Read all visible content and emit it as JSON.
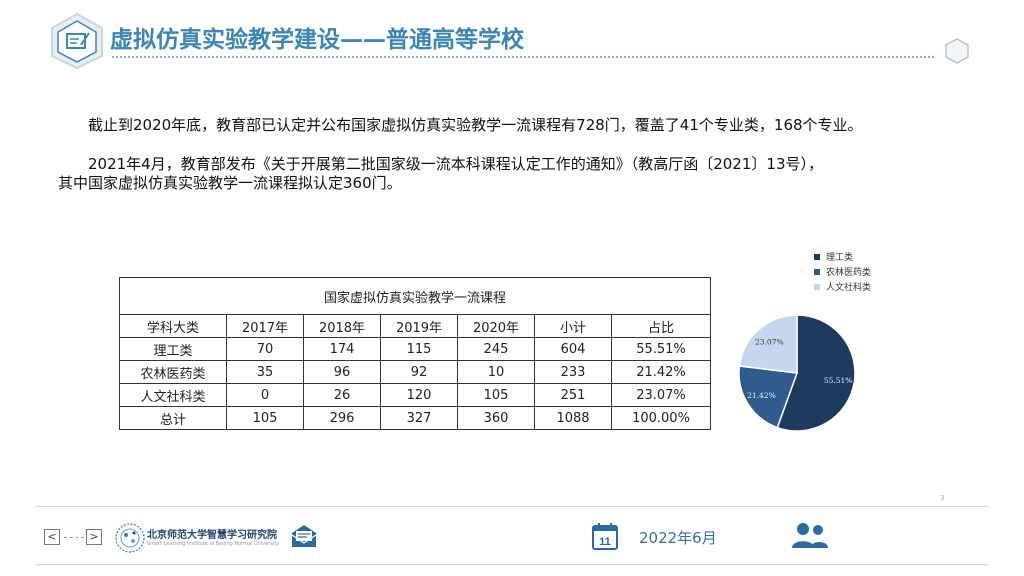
{
  "header": {
    "title": "虚拟仿真实验教学建设——普通高等学校"
  },
  "body": {
    "paragraph1": "截止到2020年底，教育部已认定并公布国家虚拟仿真实验教学一流课程有728门，覆盖了41个专业类，168个专业。",
    "paragraph2_line1": "2021年4月，教育部发布《关于开展第二批国家级一流本科课程认定工作的通知》（教高厅函〔2021〕13号），",
    "paragraph2_line2": "其中国家虚拟仿真实验教学一流课程拟认定360门。"
  },
  "table": {
    "caption": "国家虚拟仿真实验教学一流课程",
    "headers": [
      "学科大类",
      "2017年",
      "2018年",
      "2019年",
      "2020年",
      "小计",
      "占比"
    ],
    "rows": [
      [
        "理工类",
        "70",
        "174",
        "115",
        "245",
        "604",
        "55.51%"
      ],
      [
        "农林医药类",
        "35",
        "96",
        "92",
        "10",
        "233",
        "21.42%"
      ],
      [
        "人文社科类",
        "0",
        "26",
        "120",
        "105",
        "251",
        "23.07%"
      ],
      [
        "总计",
        "105",
        "296",
        "327",
        "360",
        "1088",
        "100.00%"
      ]
    ]
  },
  "chart_data": {
    "type": "pie",
    "categories": [
      "理工类",
      "农林医药类",
      "人文社科类"
    ],
    "values": [
      55.51,
      21.42,
      23.07
    ],
    "labels": [
      "55.51%",
      "21.42%",
      "23.07%"
    ],
    "colors": [
      "#1f3a5f",
      "#2f5b8e",
      "#c5d7ee"
    ],
    "legend": "top-right"
  },
  "footer": {
    "prev_label": "<",
    "next_label": ">",
    "logo_name": "北京师范大学智慧学习研究院",
    "logo_sub": "Smart Learning Institute of Beijing Normal University",
    "calendar_day": "11",
    "date": "2022年6月",
    "page_number": "3"
  }
}
